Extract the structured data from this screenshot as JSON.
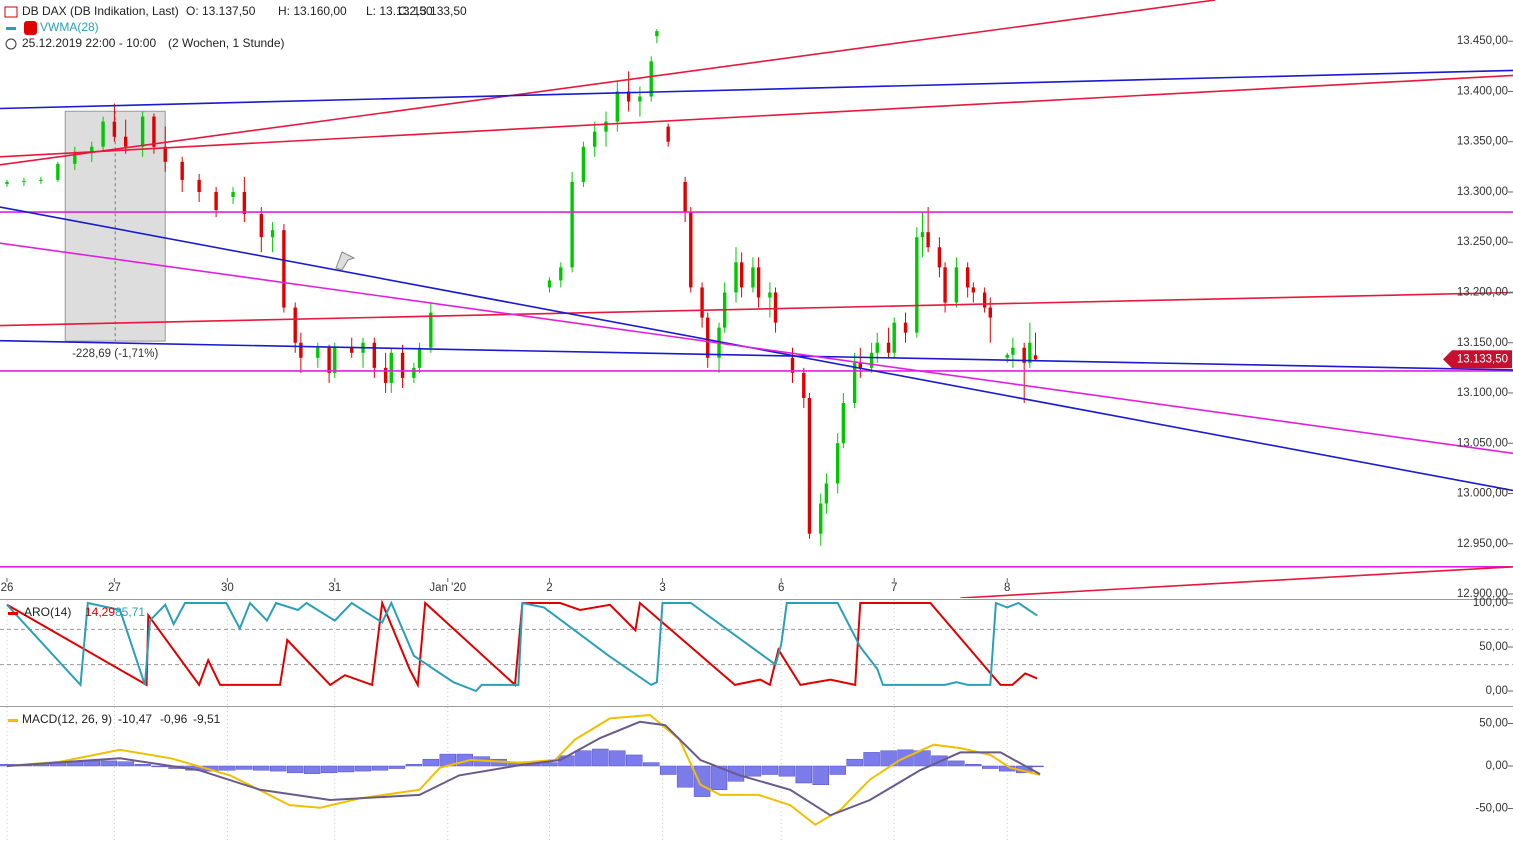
{
  "chart_data": [
    {
      "type": "candlestick",
      "title": "DB DAX (DB Indikation, Last)",
      "ohlc": [
        "O: 13.137,50",
        "H: 13.160,00",
        "L: 13.132,50",
        "C: 13.133,50"
      ],
      "indicator": "VWMA(28)",
      "period": "25.12.2019 22:00 - 10:00",
      "range": "(2 Wochen, 1 Stunde)",
      "up_color": "#00c800",
      "down_color": "#e00000",
      "x": [
        0,
        3,
        6,
        9,
        12,
        15,
        17,
        19,
        21,
        24,
        26,
        28,
        31,
        34,
        37,
        40,
        42,
        45,
        47,
        49,
        51,
        52,
        55,
        57,
        58,
        61,
        63,
        65,
        67,
        68,
        70,
        72,
        73,
        75,
        96,
        98,
        100,
        102,
        104,
        106,
        108,
        110,
        112,
        114,
        115,
        117,
        120,
        121,
        123,
        124,
        126,
        127,
        129,
        130,
        132,
        133,
        135,
        136,
        139,
        141,
        142,
        144,
        145,
        147,
        148,
        150,
        151,
        153,
        154,
        156,
        157,
        159,
        161,
        162,
        163,
        165,
        166,
        168,
        170,
        171,
        173,
        174,
        177,
        178,
        180,
        181,
        182
      ],
      "open": [
        13308,
        13310,
        13311,
        13312,
        13328,
        13340,
        13345,
        13370,
        13355,
        13345,
        13375,
        13345,
        13330,
        13312,
        13300,
        13295,
        13300,
        13278,
        13255,
        13262,
        13185,
        13150,
        13135,
        13145,
        13120,
        13145,
        13140,
        13150,
        13125,
        13110,
        13140,
        13115,
        13125,
        13145,
        13205,
        13212,
        13225,
        13310,
        13345,
        13360,
        13370,
        13400,
        13390,
        13395,
        13455,
        13365,
        13310,
        13280,
        13205,
        13175,
        13135,
        13165,
        13200,
        13230,
        13205,
        13225,
        13195,
        13200,
        13135,
        13120,
        13095,
        12960,
        12990,
        13010,
        13050,
        13090,
        13130,
        13125,
        13140,
        13150,
        13140,
        13170,
        13160,
        13255,
        13260,
        13245,
        13225,
        13190,
        13225,
        13205,
        13200,
        13185,
        13135,
        13138,
        13145,
        13130,
        13137.5
      ],
      "high": [
        13312,
        13314,
        13315,
        13330,
        13345,
        13350,
        13375,
        13388,
        13372,
        13380,
        13378,
        13365,
        13335,
        13318,
        13305,
        13305,
        13315,
        13285,
        13270,
        13268,
        13190,
        13160,
        13150,
        13148,
        13150,
        13155,
        13155,
        13155,
        13140,
        13145,
        13148,
        13130,
        13150,
        13190,
        13215,
        13230,
        13320,
        13350,
        13370,
        13380,
        13410,
        13420,
        13405,
        13435,
        13462,
        13368,
        13315,
        13285,
        13210,
        13180,
        13170,
        13210,
        13245,
        13240,
        13235,
        13235,
        13210,
        13205,
        13145,
        13125,
        13100,
        13000,
        13020,
        13060,
        13100,
        13140,
        13145,
        13150,
        13160,
        13165,
        13175,
        13180,
        13265,
        13280,
        13285,
        13255,
        13230,
        13235,
        13230,
        13210,
        13205,
        13195,
        13140,
        13155,
        13150,
        13170,
        13160
      ],
      "low": [
        13305,
        13306,
        13308,
        13310,
        13322,
        13330,
        13340,
        13350,
        13338,
        13335,
        13338,
        13320,
        13300,
        13290,
        13275,
        13288,
        13270,
        13240,
        13240,
        13180,
        13140,
        13120,
        13125,
        13110,
        13115,
        13135,
        13125,
        13115,
        13100,
        13100,
        13105,
        13110,
        13120,
        13140,
        13200,
        13205,
        13220,
        13305,
        13335,
        13345,
        13360,
        13380,
        13375,
        13390,
        13448,
        13345,
        13270,
        13200,
        13165,
        13125,
        13120,
        13160,
        13190,
        13195,
        13200,
        13185,
        13175,
        13160,
        13110,
        13085,
        12955,
        12948,
        12980,
        13000,
        13045,
        13085,
        13115,
        13120,
        13130,
        13135,
        13135,
        13150,
        13155,
        13235,
        13240,
        13215,
        13180,
        13185,
        13195,
        13190,
        13180,
        13150,
        13130,
        13125,
        13090,
        13125,
        13132.5
      ],
      "close": [
        13310,
        13311,
        13312,
        13328,
        13340,
        13345,
        13370,
        13355,
        13345,
        13375,
        13345,
        13330,
        13312,
        13300,
        13282,
        13300,
        13278,
        13255,
        13262,
        13185,
        13150,
        13135,
        13145,
        13120,
        13145,
        13140,
        13150,
        13125,
        13110,
        13140,
        13115,
        13125,
        13145,
        13180,
        13212,
        13225,
        13310,
        13345,
        13360,
        13370,
        13400,
        13390,
        13395,
        13430,
        13460,
        13350,
        13280,
        13205,
        13175,
        13135,
        13165,
        13200,
        13230,
        13205,
        13225,
        13195,
        13200,
        13170,
        13120,
        13095,
        12960,
        12990,
        13010,
        13050,
        13090,
        13130,
        13125,
        13140,
        13150,
        13140,
        13170,
        13160,
        13255,
        13260,
        13245,
        13225,
        13190,
        13225,
        13205,
        13200,
        13185,
        13175,
        13138,
        13145,
        13130,
        13150,
        13133.5
      ],
      "last_label": {
        "value": 13133.5,
        "label": "13.133,50"
      },
      "lines": [
        {
          "color": "#e8173c",
          "x": [
            -1.24,
            213.8
          ],
          "y": [
            13327,
            13491
          ]
        },
        {
          "color": "#e8173c",
          "x": [
            -1.24,
            266.5
          ],
          "y": [
            13335,
            13416
          ]
        },
        {
          "color": "#1a1ad0",
          "x": [
            -1.24,
            266.5
          ],
          "y": [
            13383,
            13421
          ]
        },
        {
          "color": "#e020e0",
          "x": [
            -1.24,
            266.5
          ],
          "y": [
            13280,
            13280
          ]
        },
        {
          "color": "#e020e0",
          "x": [
            -1.24,
            266.5
          ],
          "y": [
            13122,
            13122
          ]
        },
        {
          "color": "#e020e0",
          "x": [
            -1.24,
            266.5
          ],
          "y": [
            12927,
            12927
          ]
        },
        {
          "color": "#e8173c",
          "x": [
            -1.24,
            266.5
          ],
          "y": [
            13167,
            13200
          ]
        },
        {
          "color": "#1a1ad0",
          "x": [
            -1.24,
            266.5
          ],
          "y": [
            13152,
            13123
          ]
        },
        {
          "color": "#1a1ad0",
          "x": [
            -1.24,
            266.5
          ],
          "y": [
            13285,
            13003
          ]
        },
        {
          "color": "#e020e0",
          "x": [
            -1.24,
            266.5
          ],
          "y": [
            13249,
            13040
          ]
        },
        {
          "color": "#e8173c",
          "x": [
            168.7,
            266.5
          ],
          "y": [
            12896,
            12927
          ]
        }
      ],
      "measure": {
        "x": [
          10.3,
          28
        ],
        "y": [
          13380.3,
          13151.6
        ],
        "label": "-228,69 (-1,71%)"
      },
      "xlim": [
        -1.24,
        266.5
      ],
      "xticks": [
        {
          "value": 0,
          "label": "26"
        },
        {
          "value": 19,
          "label": "27"
        },
        {
          "value": 39,
          "label": "30"
        },
        {
          "value": 58,
          "label": "31"
        },
        {
          "value": 78,
          "label": "Jan '20"
        },
        {
          "value": 96,
          "label": "2"
        },
        {
          "value": 116,
          "label": "3"
        },
        {
          "value": 137,
          "label": "6"
        },
        {
          "value": 157,
          "label": "7"
        },
        {
          "value": 177,
          "label": "8"
        }
      ],
      "ylim": [
        12896,
        13491
      ],
      "yticks": [
        {
          "value": 12900,
          "label": "12.900,00"
        },
        {
          "value": 12950,
          "label": "12.950,00"
        },
        {
          "value": 13000,
          "label": "13.000,00"
        },
        {
          "value": 13050,
          "label": "13.050,00"
        },
        {
          "value": 13100,
          "label": "13.100,00"
        },
        {
          "value": 13150,
          "label": "13.150,00"
        },
        {
          "value": 13200,
          "label": "13.200,00"
        },
        {
          "value": 13250,
          "label": "13.250,00"
        },
        {
          "value": 13300,
          "label": "13.300,00"
        },
        {
          "value": 13350,
          "label": "13.350,00"
        },
        {
          "value": 13400,
          "label": "13.400,00"
        },
        {
          "value": 13450,
          "label": "13.450,00"
        }
      ]
    },
    {
      "type": "line",
      "title": "ARO(14)",
      "series": [
        {
          "name": "14,29",
          "color": "#e00000",
          "x": [
            0,
            24.7,
            25,
            34,
            35.6,
            37.7,
            48.3,
            49.6,
            57.2,
            59.8,
            64.6,
            66.4,
            71.3,
            72.7,
            74,
            89.9,
            91.2,
            97.9,
            101.4,
            106.7,
            111.2,
            112,
            128.8,
            133.3,
            135,
            136.5,
            140.4,
            145.7,
            150.1,
            151,
            163.4,
            175.8,
            177.9,
            180.2,
            182.3
          ],
          "values": [
            98,
            7,
            86,
            7,
            35,
            7,
            7,
            58,
            7,
            18,
            7,
            100,
            24,
            7,
            100,
            7,
            100,
            100,
            92,
            98,
            69,
            100,
            7,
            13,
            7,
            47,
            7,
            13,
            7,
            100,
            100,
            7,
            7,
            20,
            14.29
          ]
        },
        {
          "name": "85,71",
          "color": "#2aa0b8",
          "x": [
            0,
            13,
            14.3,
            20,
            24.4,
            25.3,
            28,
            29.5,
            31.5,
            38.8,
            41.2,
            43,
            46,
            47.6,
            51.5,
            53,
            58,
            61,
            66.4,
            68,
            72,
            79,
            83,
            84,
            90.5,
            91.2,
            95,
            106.5,
            114,
            115,
            116,
            121,
            136,
            137,
            138,
            147,
            151,
            154,
            155,
            166,
            168,
            170,
            174,
            175,
            177,
            179,
            182.3
          ],
          "values": [
            98,
            7,
            100,
            92,
            7,
            80,
            98,
            76,
            100,
            100,
            71,
            100,
            80,
            100,
            92,
            100,
            80,
            100,
            78,
            100,
            40,
            10,
            0,
            7,
            7,
            100,
            95,
            40,
            7,
            10,
            100,
            100,
            30,
            53,
            100,
            100,
            50,
            25,
            7,
            7,
            10,
            7,
            7,
            100,
            95,
            100,
            85.71
          ]
        }
      ],
      "levels": [
        30,
        70
      ],
      "xlim": [
        -1.24,
        266.5
      ],
      "ylim": [
        -17,
        103.4
      ],
      "yticks": [
        {
          "value": 0,
          "label": "0,00"
        },
        {
          "value": 50,
          "label": "50,00"
        },
        {
          "value": 100,
          "label": "100,00"
        }
      ]
    },
    {
      "type": "macd",
      "title": "MACD(12, 26, 9)",
      "series": [
        {
          "name": "-10,47",
          "color": "#f0c000",
          "x": [
            0,
            9.4,
            20,
            29,
            39.5,
            50,
            55.4,
            62.5,
            73,
            76.6,
            82,
            90.8,
            97,
            100.5,
            106.7,
            113.8,
            119,
            122.7,
            126.2,
            133,
            138.6,
            143,
            147.4,
            152.7,
            158,
            164,
            168.7,
            174,
            177.5,
            182.8
          ],
          "values": [
            0,
            5,
            19,
            9,
            -11,
            -46,
            -49,
            -38,
            -28,
            -2,
            7,
            4,
            7,
            31,
            56,
            60,
            31,
            -22,
            -34,
            -34,
            -46,
            -69,
            -52,
            -16,
            7,
            25,
            21,
            13,
            -2,
            -10.47
          ]
        },
        {
          "name": "-9,51",
          "color": "#6a5a8a",
          "x": [
            0,
            20,
            34,
            44.8,
            57.2,
            73,
            80,
            90.8,
            97.9,
            105,
            112,
            116.5,
            122.7,
            129.7,
            138.6,
            145.7,
            152.7,
            161.6,
            168.7,
            175.8,
            182.8
          ],
          "values": [
            0,
            9,
            -5,
            -28,
            -40,
            -34,
            -11,
            1,
            7,
            33,
            52,
            48,
            7,
            -11,
            -28,
            -58,
            -40,
            -5,
            16,
            16,
            -9.51
          ]
        }
      ],
      "histogram": {
        "name": "-0,96",
        "color": "#7b7bea",
        "x": [
          0,
          3,
          6,
          9,
          12,
          15,
          18,
          21,
          24,
          27,
          30,
          33,
          36,
          39,
          42,
          45,
          48,
          51,
          54,
          57,
          60,
          63,
          66,
          69,
          72,
          75,
          78,
          81,
          84,
          87,
          90,
          93,
          96,
          99,
          102,
          105,
          108,
          111,
          114,
          117,
          120,
          123,
          126,
          129,
          132,
          135,
          138,
          141,
          144,
          147,
          150,
          153,
          156,
          159,
          162,
          165,
          168,
          171,
          174,
          177,
          180,
          182
        ],
        "values": [
          2,
          2,
          3,
          4,
          5,
          6,
          6,
          5,
          2,
          -1,
          -3,
          -5,
          -6,
          -5,
          -4,
          -5,
          -6,
          -8,
          -9,
          -8,
          -7,
          -6,
          -5,
          -3,
          2,
          8,
          14,
          14,
          11,
          8,
          5,
          3,
          4,
          12,
          18,
          20,
          18,
          13,
          4,
          -10,
          -25,
          -36,
          -28,
          -18,
          -12,
          -10,
          -12,
          -20,
          -22,
          -10,
          8,
          16,
          18,
          19,
          18,
          12,
          6,
          2,
          -3,
          -6,
          -8,
          -0.96
        ]
      },
      "xlim": [
        -1.24,
        266.5
      ],
      "ylim": [
        -89.4,
        69.4
      ],
      "yticks": [
        {
          "value": -50,
          "label": "-50,00"
        },
        {
          "value": 0,
          "label": "0,00"
        },
        {
          "value": 50,
          "label": "50,00"
        }
      ]
    }
  ]
}
